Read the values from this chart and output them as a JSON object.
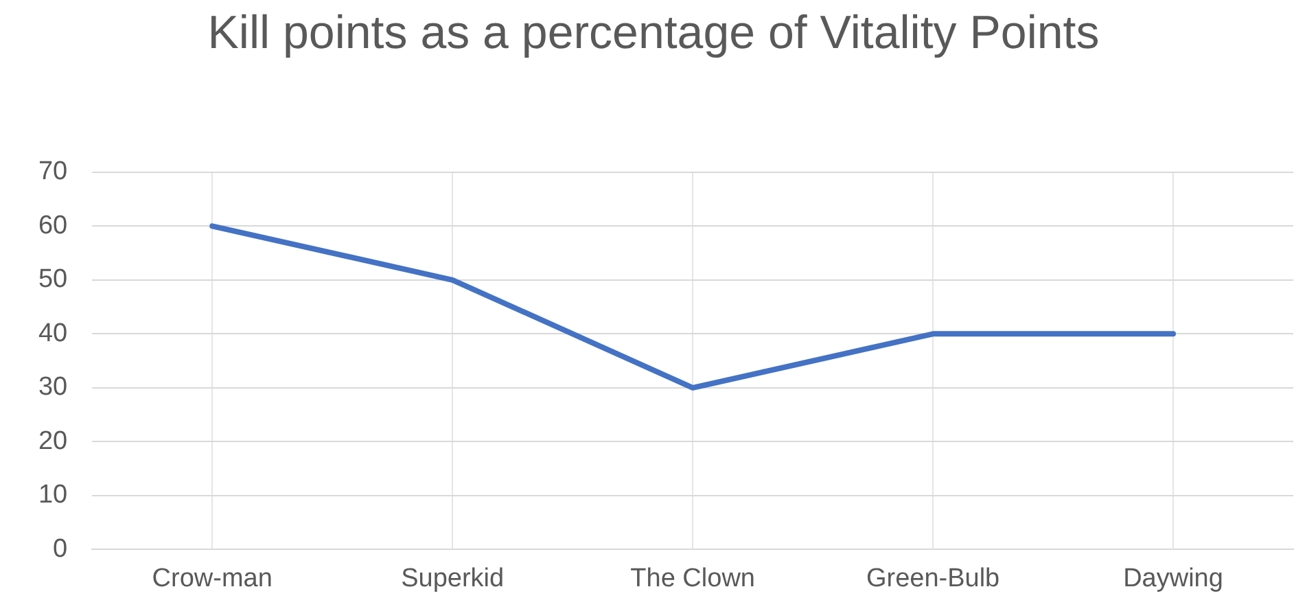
{
  "chart_data": {
    "type": "line",
    "title": "Kill points as a percentage of Vitality Points",
    "categories": [
      "Crow-man",
      "Superkid",
      "The Clown",
      "Green-Bulb",
      "Daywing"
    ],
    "values": [
      60,
      50,
      30,
      40,
      40
    ],
    "color": "#4472c4",
    "ylim": [
      0,
      70
    ],
    "yticks": [
      0,
      10,
      20,
      30,
      40,
      50,
      60,
      70
    ],
    "grid": true,
    "legend": false,
    "marker": "none"
  }
}
